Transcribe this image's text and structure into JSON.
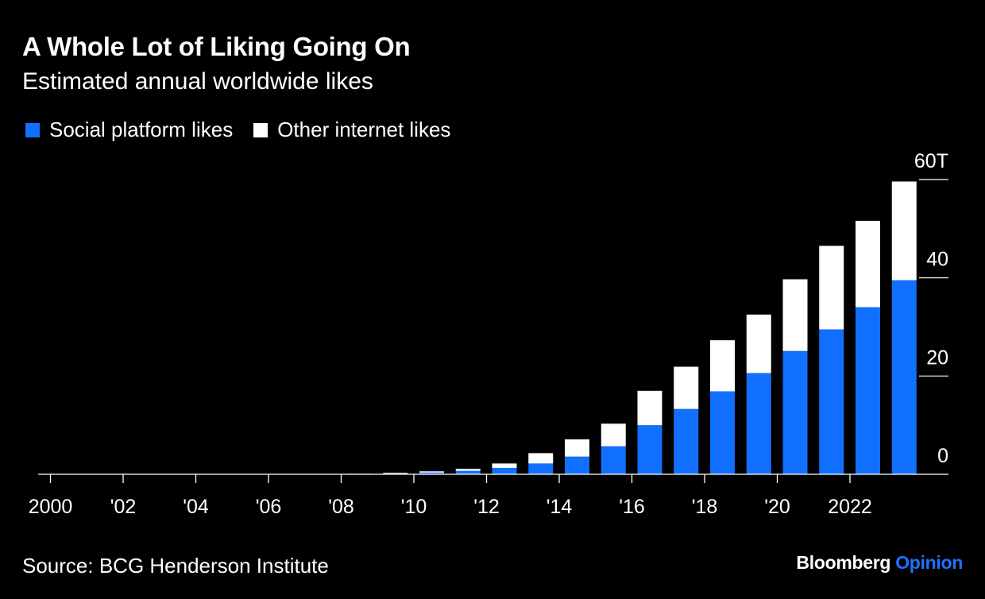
{
  "header": {
    "title": "A Whole Lot of Liking Going On",
    "subtitle": "Estimated annual worldwide likes"
  },
  "legend": {
    "items": [
      {
        "label": "Social platform likes",
        "color": "#1170ff"
      },
      {
        "label": "Other internet likes",
        "color": "#ffffff"
      }
    ]
  },
  "footer": {
    "source": "Source: BCG Henderson Institute",
    "brand_name": "Bloomberg",
    "brand_section": "Opinion"
  },
  "chart_data": {
    "type": "bar",
    "stacked": true,
    "x": [
      2000,
      2001,
      2002,
      2003,
      2004,
      2005,
      2006,
      2007,
      2008,
      2009,
      2010,
      2011,
      2012,
      2013,
      2014,
      2015,
      2016,
      2017,
      2018,
      2019,
      2020,
      2021,
      2022,
      2023
    ],
    "x_tick_labels": [
      {
        "x": 2000,
        "label": "2000"
      },
      {
        "x": 2002,
        "label": "'02"
      },
      {
        "x": 2004,
        "label": "'04"
      },
      {
        "x": 2006,
        "label": "'06"
      },
      {
        "x": 2008,
        "label": "'08"
      },
      {
        "x": 2010,
        "label": "'10"
      },
      {
        "x": 2012,
        "label": "'12"
      },
      {
        "x": 2014,
        "label": "'14"
      },
      {
        "x": 2016,
        "label": "'16"
      },
      {
        "x": 2018,
        "label": "'18"
      },
      {
        "x": 2020,
        "label": "'20"
      },
      {
        "x": 2022,
        "label": "2022"
      }
    ],
    "series": [
      {
        "name": "Social platform likes",
        "color": "#1170ff",
        "values": [
          0,
          0,
          0,
          0,
          0,
          0,
          0,
          0,
          0.05,
          0.15,
          0.35,
          0.7,
          1.3,
          2.2,
          3.6,
          5.7,
          10.0,
          13.3,
          16.9,
          20.6,
          25.1,
          29.5,
          34.0,
          39.5
        ]
      },
      {
        "name": "Other internet likes",
        "color": "#ffffff",
        "values": [
          0,
          0,
          0,
          0,
          0,
          0,
          0,
          0,
          0.05,
          0.15,
          0.25,
          0.4,
          0.9,
          2.1,
          3.5,
          4.6,
          7.0,
          8.6,
          10.4,
          11.9,
          14.6,
          17.0,
          17.6,
          20.1
        ]
      }
    ],
    "y_ticks": [
      {
        "value": 0,
        "label": "0"
      },
      {
        "value": 20,
        "label": "20"
      },
      {
        "value": 40,
        "label": "40"
      },
      {
        "value": 60,
        "label": "60T"
      }
    ],
    "ylim": [
      0,
      60
    ],
    "xlabel": "",
    "ylabel": "",
    "grid": false,
    "legend_position": "top-left",
    "y_axis_side": "right"
  }
}
